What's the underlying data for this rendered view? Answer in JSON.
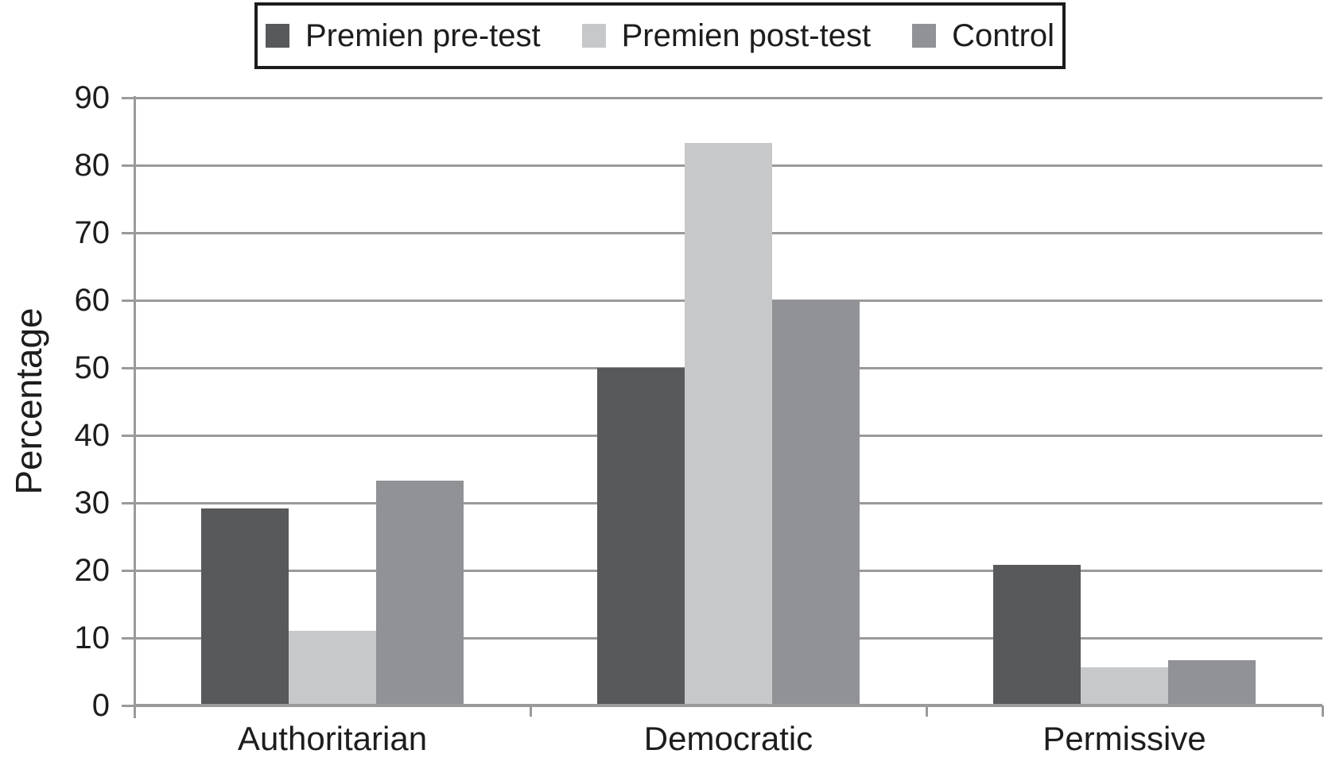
{
  "chart_data": {
    "type": "bar",
    "title": "",
    "xlabel": "",
    "ylabel": "Percentage",
    "categories": [
      "Authoritarian",
      "Democratic",
      "Permissive"
    ],
    "series": [
      {
        "name": "Premien pre-test",
        "color": "#58595b",
        "values": [
          29.2,
          50.0,
          20.8
        ]
      },
      {
        "name": "Premien post-test",
        "color": "#c7c8ca",
        "values": [
          11.1,
          83.3,
          5.6
        ]
      },
      {
        "name": "Control",
        "color": "#909295",
        "values": [
          33.3,
          60.0,
          6.7
        ]
      }
    ],
    "ylim": [
      0,
      90
    ],
    "ytick_step": 10,
    "grid": true,
    "legend_position": "top-center"
  },
  "colors": {
    "gridline": "#9a9a9a",
    "axis": "#9a9a9a",
    "text": "#1d1d1f",
    "background": "#ffffff",
    "legend_border": "#1c1c1c"
  }
}
